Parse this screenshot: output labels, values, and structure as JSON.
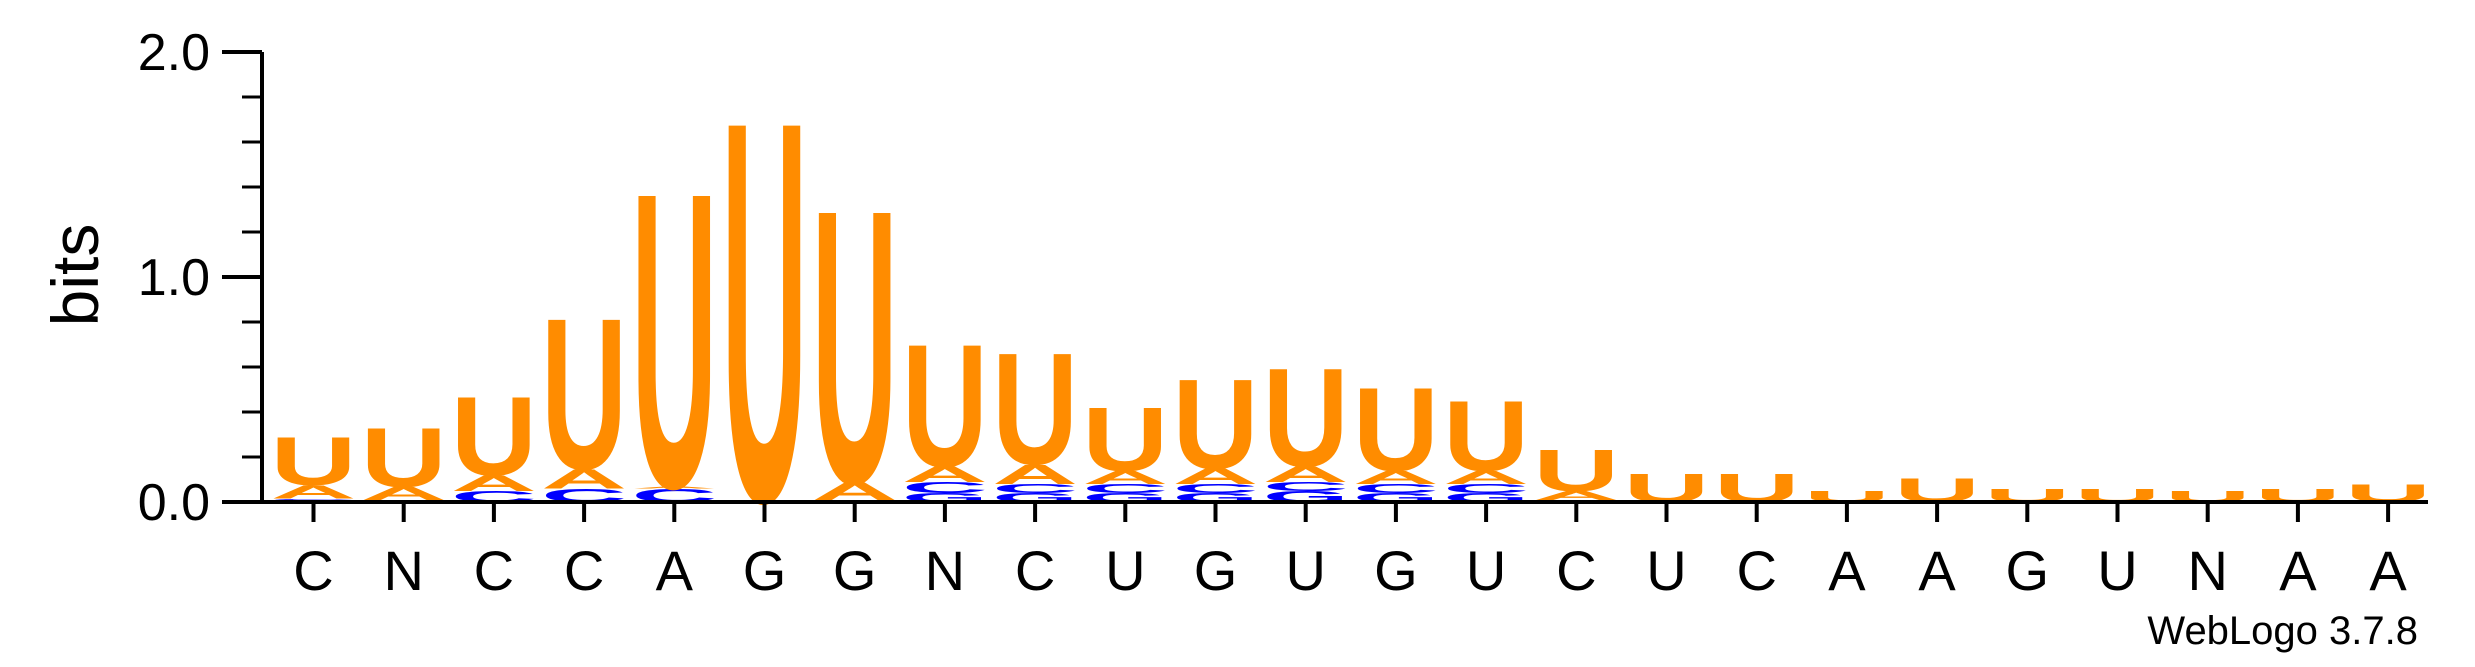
{
  "chart_data": {
    "type": "sequence-logo",
    "ylabel": "bits",
    "ylim": [
      0,
      2.0
    ],
    "yticks": [
      "0.0",
      "1.0",
      "2.0"
    ],
    "x_labels": [
      "C",
      "N",
      "C",
      "C",
      "A",
      "G",
      "G",
      "N",
      "C",
      "U",
      "G",
      "U",
      "G",
      "U",
      "C",
      "U",
      "C",
      "A",
      "A",
      "G",
      "U",
      "N",
      "A",
      "A"
    ],
    "colors": {
      "U": "#ff8c00",
      "A": "#ff8c00",
      "C": "#0000ff",
      "G": "#0000ff"
    },
    "columns": [
      [
        [
          "G",
          0.005
        ],
        [
          "C",
          0.01
        ],
        [
          "A",
          0.06
        ],
        [
          "U",
          0.22
        ]
      ],
      [
        [
          "C",
          0.01
        ],
        [
          "A",
          0.06
        ],
        [
          "U",
          0.27
        ]
      ],
      [
        [
          "C",
          0.05
        ],
        [
          "A",
          0.07
        ],
        [
          "U",
          0.36
        ]
      ],
      [
        [
          "C",
          0.06
        ],
        [
          "A",
          0.09
        ],
        [
          "U",
          0.69
        ]
      ],
      [
        [
          "C",
          0.06
        ],
        [
          "A",
          0.01
        ],
        [
          "U",
          1.35
        ]
      ],
      [
        [
          "A",
          0.01
        ],
        [
          "U",
          1.74
        ]
      ],
      [
        [
          "C",
          0.01
        ],
        [
          "A",
          0.08
        ],
        [
          "U",
          1.25
        ]
      ],
      [
        [
          "G",
          0.04
        ],
        [
          "C",
          0.05
        ],
        [
          "A",
          0.07
        ],
        [
          "U",
          0.56
        ]
      ],
      [
        [
          "G",
          0.04
        ],
        [
          "C",
          0.04
        ],
        [
          "A",
          0.09
        ],
        [
          "U",
          0.51
        ]
      ],
      [
        [
          "G",
          0.04
        ],
        [
          "C",
          0.04
        ],
        [
          "A",
          0.06
        ],
        [
          "U",
          0.29
        ]
      ],
      [
        [
          "G",
          0.04
        ],
        [
          "C",
          0.04
        ],
        [
          "A",
          0.07
        ],
        [
          "U",
          0.41
        ]
      ],
      [
        [
          "G",
          0.05
        ],
        [
          "C",
          0.04
        ],
        [
          "A",
          0.07
        ],
        [
          "U",
          0.45
        ]
      ],
      [
        [
          "G",
          0.04
        ],
        [
          "C",
          0.04
        ],
        [
          "A",
          0.06
        ],
        [
          "U",
          0.38
        ]
      ],
      [
        [
          "G",
          0.04
        ],
        [
          "C",
          0.04
        ],
        [
          "A",
          0.06
        ],
        [
          "U",
          0.32
        ]
      ],
      [
        [
          "C",
          0.01
        ],
        [
          "A",
          0.04
        ],
        [
          "U",
          0.19
        ]
      ],
      [
        [
          "U",
          0.13
        ]
      ],
      [
        [
          "U",
          0.13
        ]
      ],
      [
        [
          "U",
          0.05
        ]
      ],
      [
        [
          "U",
          0.11
        ]
      ],
      [
        [
          "U",
          0.06
        ]
      ],
      [
        [
          "U",
          0.06
        ]
      ],
      [
        [
          "U",
          0.05
        ]
      ],
      [
        [
          "U",
          0.06
        ]
      ],
      [
        [
          "U",
          0.08
        ]
      ]
    ],
    "credit": "WebLogo 3.7.8"
  }
}
